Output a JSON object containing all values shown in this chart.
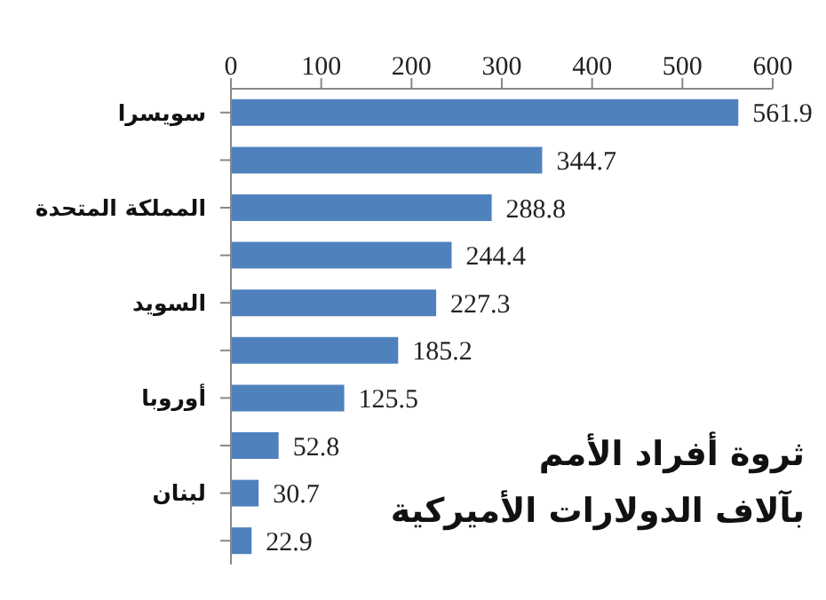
{
  "chart_data": {
    "type": "bar",
    "orientation": "horizontal",
    "title": "ثروة أفراد الأمم",
    "subtitle": "بآلاف الدولارات الأميركية",
    "categories": [
      "سويسرا",
      null,
      "المملكة المتحدة",
      null,
      "السويد",
      null,
      "أوروبا",
      null,
      "لبنان",
      null
    ],
    "values": [
      561.9,
      344.7,
      288.8,
      244.4,
      227.3,
      185.2,
      125.5,
      52.8,
      30.7,
      22.9
    ],
    "color": "#4f81bd",
    "xlim": [
      0,
      600
    ],
    "xticks": [
      0,
      100,
      200,
      300,
      400,
      500,
      600
    ],
    "data_labels": true,
    "grid": false
  }
}
